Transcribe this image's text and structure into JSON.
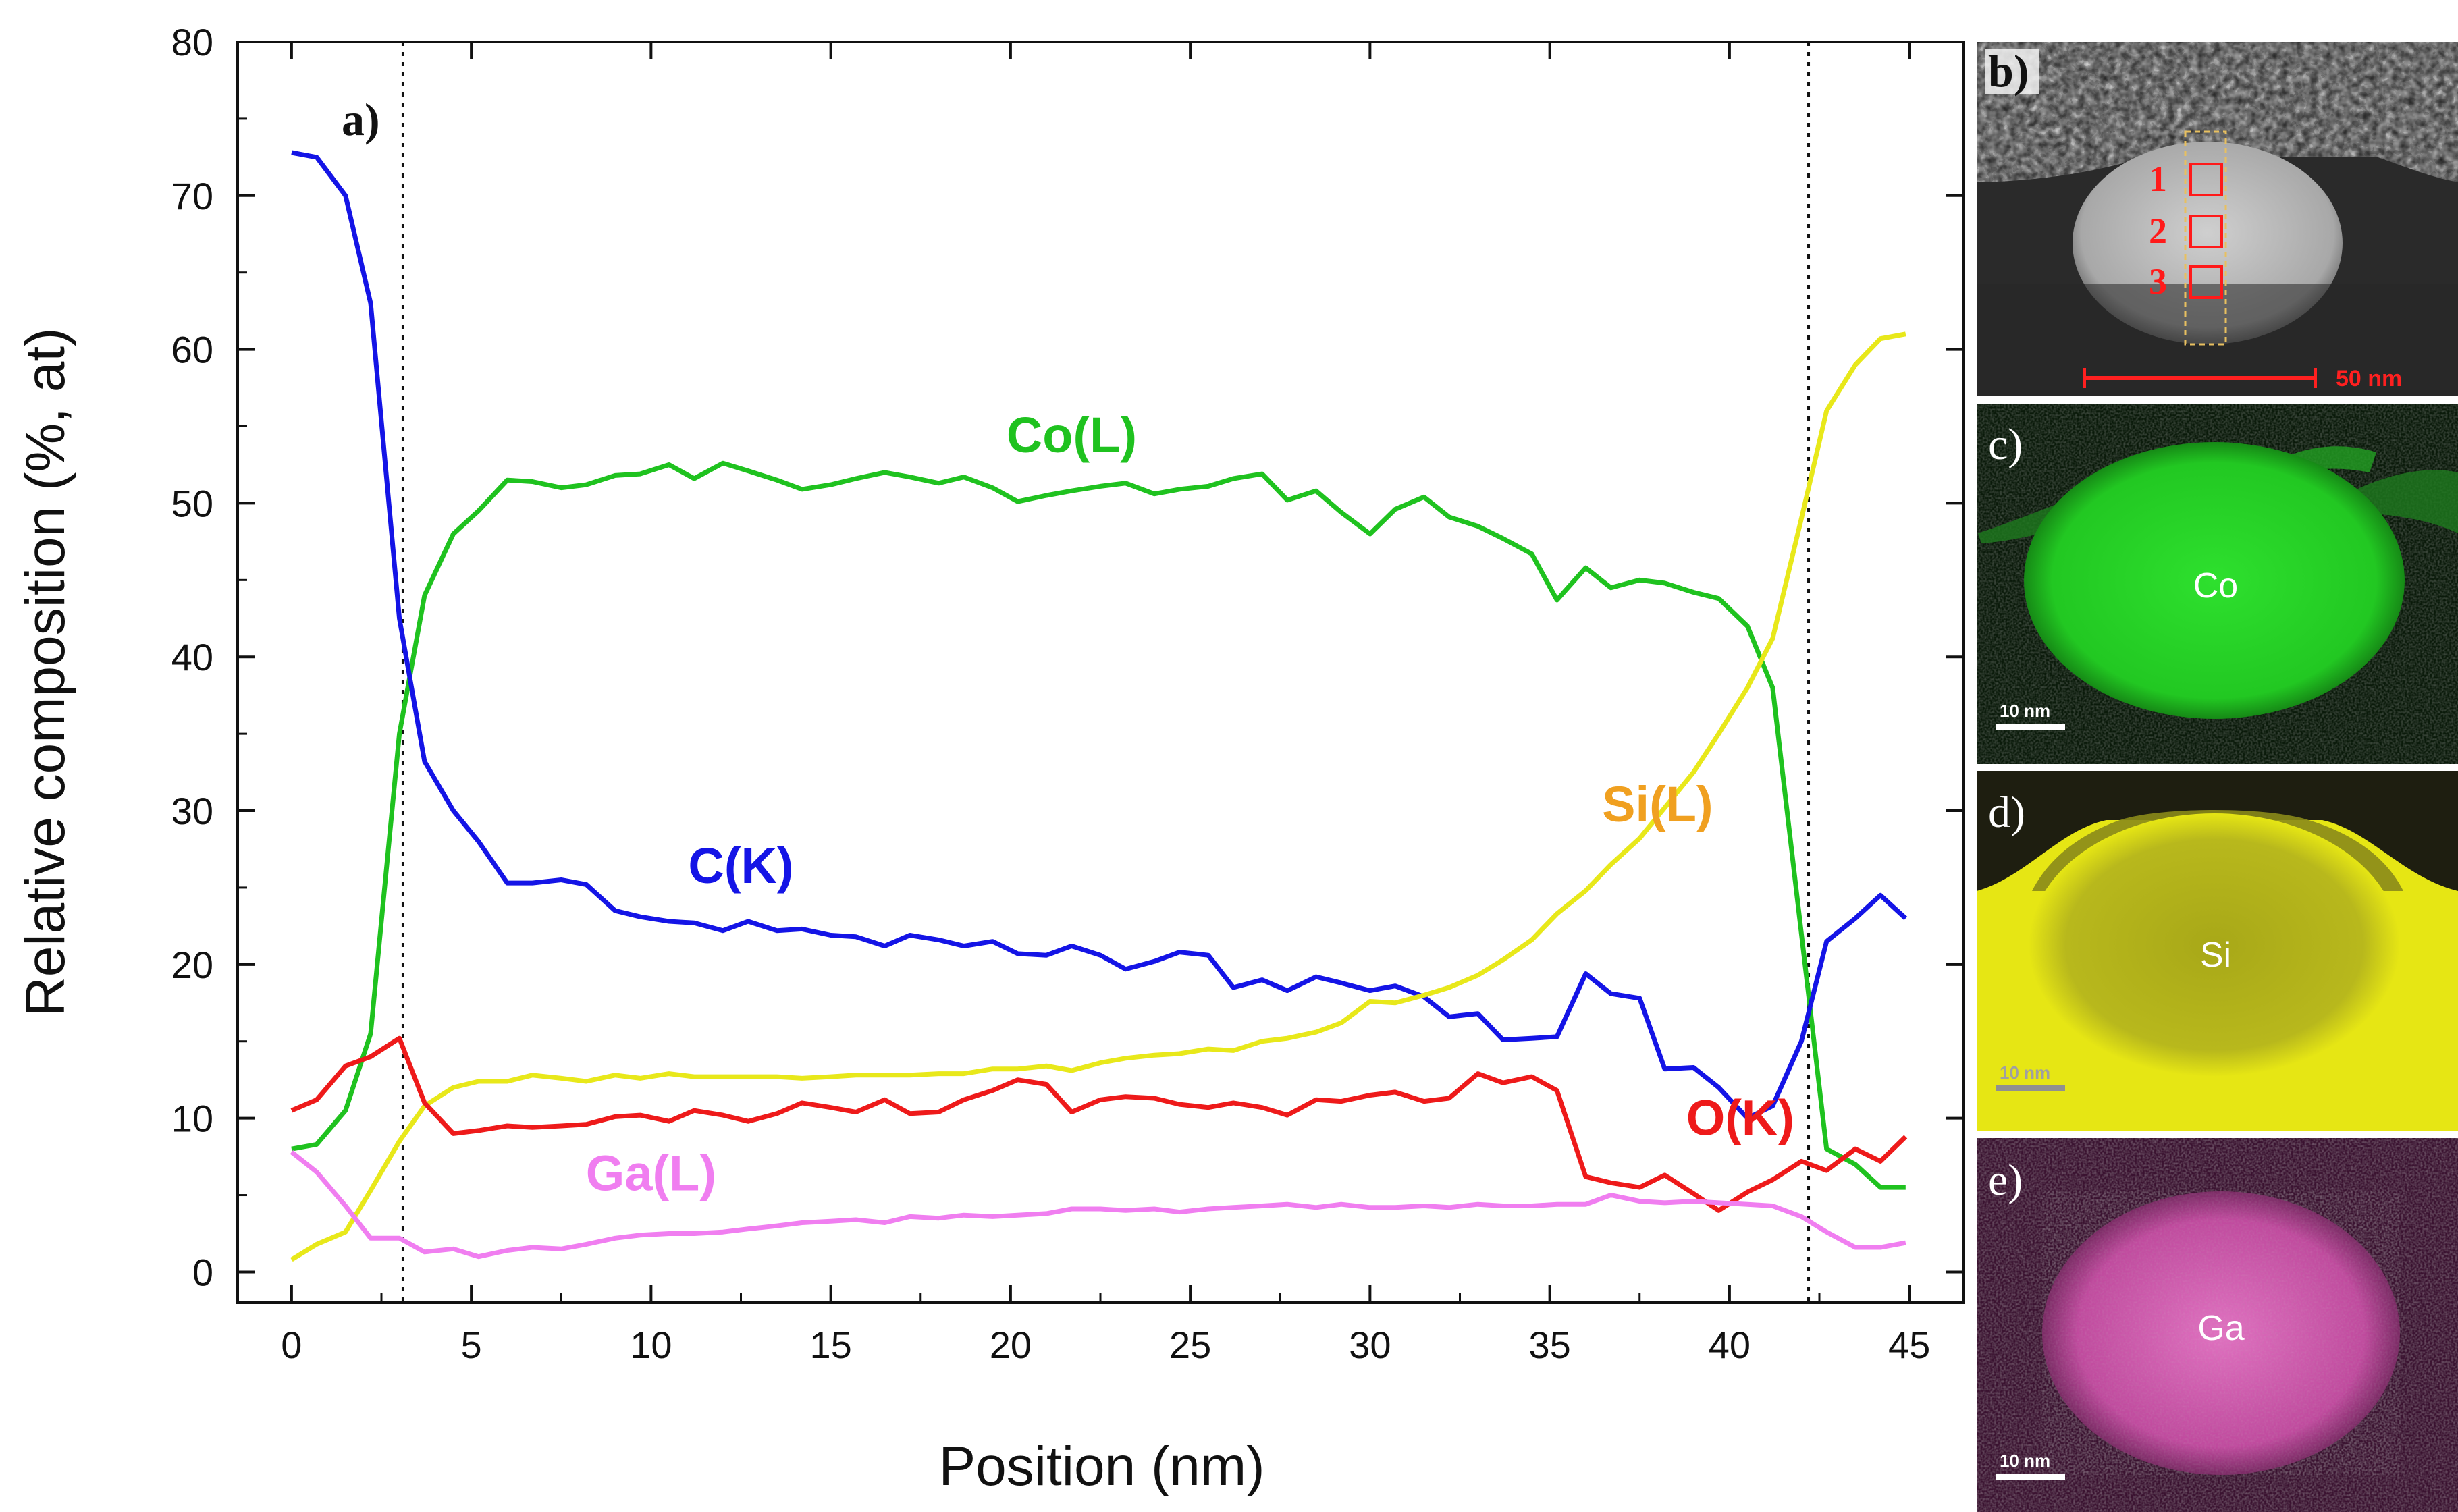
{
  "chart_data": {
    "type": "line",
    "title": "",
    "panel_label": "a)",
    "xlabel": "Position (nm)",
    "ylabel": "Relative composition (%, at)",
    "xlim": [
      -1.5,
      46.5
    ],
    "ylim": [
      -2,
      80
    ],
    "xticks": [
      0,
      5,
      10,
      15,
      20,
      25,
      30,
      35,
      40,
      45
    ],
    "yticks": [
      0,
      10,
      20,
      30,
      40,
      50,
      60,
      70,
      80
    ],
    "vlines": [
      3.1,
      42.2
    ],
    "x": [
      0,
      0.7,
      1.5,
      2.2,
      3,
      3.7,
      4.5,
      5.2,
      6,
      6.7,
      7.5,
      8.2,
      9,
      9.7,
      10.5,
      11.2,
      12,
      12.7,
      13.5,
      14.2,
      15,
      15.7,
      16.5,
      17.2,
      18,
      18.7,
      19.5,
      20.2,
      21,
      21.7,
      22.5,
      23.2,
      24,
      24.7,
      25.5,
      26.2,
      27,
      27.7,
      28.5,
      29.2,
      30,
      30.7,
      31.5,
      32.2,
      33,
      33.7,
      34.5,
      35.2,
      36,
      36.7,
      37.5,
      38.2,
      39,
      39.7,
      40.5,
      41.2,
      42,
      42.7,
      43.5,
      44.2,
      44.9
    ],
    "series": [
      {
        "name": "Co(L)",
        "color": "#1fc21f",
        "label": "Co(L)",
        "label_color": "#1fc21f",
        "label_pos": [
          21.7,
          53.3
        ],
        "values": [
          8,
          8.3,
          10.5,
          15.5,
          35,
          44,
          48,
          49.5,
          51.5,
          51.4,
          51,
          51.2,
          51.8,
          51.9,
          52.5,
          51.6,
          52.6,
          52.1,
          51.5,
          50.9,
          51.2,
          51.6,
          52,
          51.7,
          51.3,
          51.7,
          51,
          50.1,
          50.5,
          50.8,
          51.1,
          51.3,
          50.6,
          50.9,
          51.1,
          51.6,
          51.9,
          50.2,
          50.8,
          49.4,
          48,
          49.6,
          50.4,
          49.1,
          48.5,
          47.7,
          46.7,
          43.7,
          45.8,
          44.5,
          45.0,
          44.8,
          44.2,
          43.8,
          42,
          38,
          22,
          8,
          7,
          5.5,
          5.5
        ]
      },
      {
        "name": "C(K)",
        "color": "#1414e6",
        "label": "C(K)",
        "label_color": "#1414e6",
        "label_pos": [
          12.5,
          25.3
        ],
        "values": [
          72.8,
          72.5,
          70,
          63,
          42.5,
          33.2,
          30,
          28,
          25.3,
          25.3,
          25.5,
          25.2,
          23.5,
          23.1,
          22.8,
          22.7,
          22.2,
          22.8,
          22.2,
          22.3,
          21.9,
          21.8,
          21.2,
          21.9,
          21.6,
          21.2,
          21.5,
          20.7,
          20.6,
          21.2,
          20.6,
          19.7,
          20.2,
          20.8,
          20.6,
          18.5,
          19,
          18.3,
          19.2,
          18.8,
          18.3,
          18.6,
          17.9,
          16.6,
          16.8,
          15.1,
          15.2,
          15.3,
          19.4,
          18.1,
          17.8,
          13.2,
          13.3,
          12,
          10,
          10.8,
          15,
          21.5,
          23,
          24.5,
          23
        ]
      },
      {
        "name": "Si(L)",
        "color": "#e8e81a",
        "label": "Si(L)",
        "label_color": "#f0a020",
        "label_pos": [
          38,
          29.3
        ],
        "values": [
          0.8,
          1.8,
          2.6,
          5.3,
          8.5,
          10.8,
          12,
          12.4,
          12.4,
          12.8,
          12.6,
          12.4,
          12.8,
          12.6,
          12.9,
          12.7,
          12.7,
          12.7,
          12.7,
          12.6,
          12.7,
          12.8,
          12.8,
          12.8,
          12.9,
          12.9,
          13.2,
          13.2,
          13.4,
          13.1,
          13.6,
          13.9,
          14.1,
          14.2,
          14.5,
          14.4,
          15,
          15.2,
          15.6,
          16.2,
          17.6,
          17.5,
          18,
          18.5,
          19.3,
          20.3,
          21.6,
          23.3,
          24.8,
          26.5,
          28.2,
          30.2,
          32.5,
          35,
          38,
          41.2,
          49,
          56,
          59,
          60.7,
          61
        ]
      },
      {
        "name": "O(K)",
        "color": "#ee1a1a",
        "label": "O(K)",
        "label_color": "#ee1a1a",
        "label_pos": [
          40.3,
          8.9
        ],
        "values": [
          10.5,
          11.2,
          13.4,
          14,
          15.2,
          11,
          9,
          9.2,
          9.5,
          9.4,
          9.5,
          9.6,
          10.1,
          10.2,
          9.8,
          10.5,
          10.2,
          9.8,
          10.3,
          11,
          10.7,
          10.4,
          11.2,
          10.3,
          10.4,
          11.2,
          11.8,
          12.5,
          12.2,
          10.4,
          11.2,
          11.4,
          11.3,
          10.9,
          10.7,
          11,
          10.7,
          10.2,
          11.2,
          11.1,
          11.5,
          11.7,
          11.1,
          11.3,
          12.9,
          12.3,
          12.7,
          11.8,
          6.2,
          5.8,
          5.5,
          6.3,
          5.1,
          4,
          5.2,
          6.0,
          7.2,
          6.6,
          8,
          7.2,
          8.8
        ]
      },
      {
        "name": "Ga(L)",
        "color": "#f07ef0",
        "label": "Ga(L)",
        "label_color": "#f07ef0",
        "label_pos": [
          10,
          5.3
        ],
        "values": [
          7.8,
          6.5,
          4.3,
          2.2,
          2.2,
          1.3,
          1.5,
          1.0,
          1.4,
          1.6,
          1.5,
          1.8,
          2.2,
          2.4,
          2.5,
          2.5,
          2.6,
          2.8,
          3,
          3.2,
          3.3,
          3.4,
          3.2,
          3.6,
          3.5,
          3.7,
          3.6,
          3.7,
          3.8,
          4.1,
          4.1,
          4.0,
          4.1,
          3.9,
          4.1,
          4.2,
          4.3,
          4.4,
          4.2,
          4.4,
          4.2,
          4.2,
          4.3,
          4.2,
          4.4,
          4.3,
          4.3,
          4.4,
          4.4,
          5.0,
          4.6,
          4.5,
          4.6,
          4.5,
          4.4,
          4.3,
          3.6,
          2.6,
          1.6,
          1.6,
          1.9
        ]
      }
    ]
  },
  "panels": {
    "b": {
      "letter": "b)",
      "scale_label": "50 nm",
      "region_numbers": [
        "1",
        "2",
        "3"
      ]
    },
    "c": {
      "letter": "c)",
      "element": "Co",
      "scale_label": "10 nm",
      "color": "#22cc22"
    },
    "d": {
      "letter": "d)",
      "element": "Si",
      "scale_label": "10 nm",
      "color": "#e6e614"
    },
    "e": {
      "letter": "e)",
      "element": "Ga",
      "scale_label": "10 nm",
      "color": "#d85ab4"
    }
  }
}
